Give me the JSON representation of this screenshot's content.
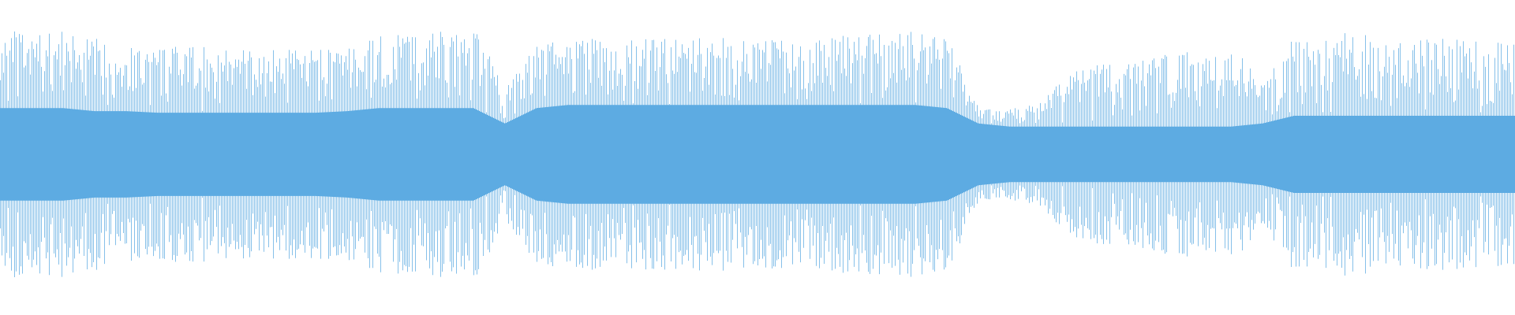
{
  "waveform": {
    "color": "#5dabe2",
    "peak": [
      0.8,
      0.8,
      0.8,
      0.75,
      0.72,
      0.7,
      0.7,
      0.7,
      0.68,
      0.68,
      0.68,
      0.7,
      0.78,
      0.8,
      0.8,
      0.82,
      0.45,
      0.72,
      0.75,
      0.75,
      0.75,
      0.75,
      0.76,
      0.77,
      0.77,
      0.77,
      0.76,
      0.78,
      0.8,
      0.8,
      0.8,
      0.3,
      0.3,
      0.35,
      0.55,
      0.6,
      0.6,
      0.65,
      0.7,
      0.72,
      0.45,
      0.78,
      0.8,
      0.78,
      0.75,
      0.75,
      0.75,
      0.75,
      0.72
    ],
    "core": [
      0.3,
      0.3,
      0.3,
      0.28,
      0.28,
      0.27,
      0.27,
      0.27,
      0.27,
      0.27,
      0.27,
      0.28,
      0.3,
      0.3,
      0.3,
      0.3,
      0.2,
      0.3,
      0.32,
      0.32,
      0.32,
      0.32,
      0.32,
      0.32,
      0.32,
      0.32,
      0.32,
      0.32,
      0.32,
      0.32,
      0.3,
      0.2,
      0.18,
      0.18,
      0.18,
      0.18,
      0.18,
      0.18,
      0.18,
      0.18,
      0.2,
      0.25,
      0.25,
      0.25,
      0.25,
      0.25,
      0.25,
      0.25,
      0.25
    ]
  }
}
